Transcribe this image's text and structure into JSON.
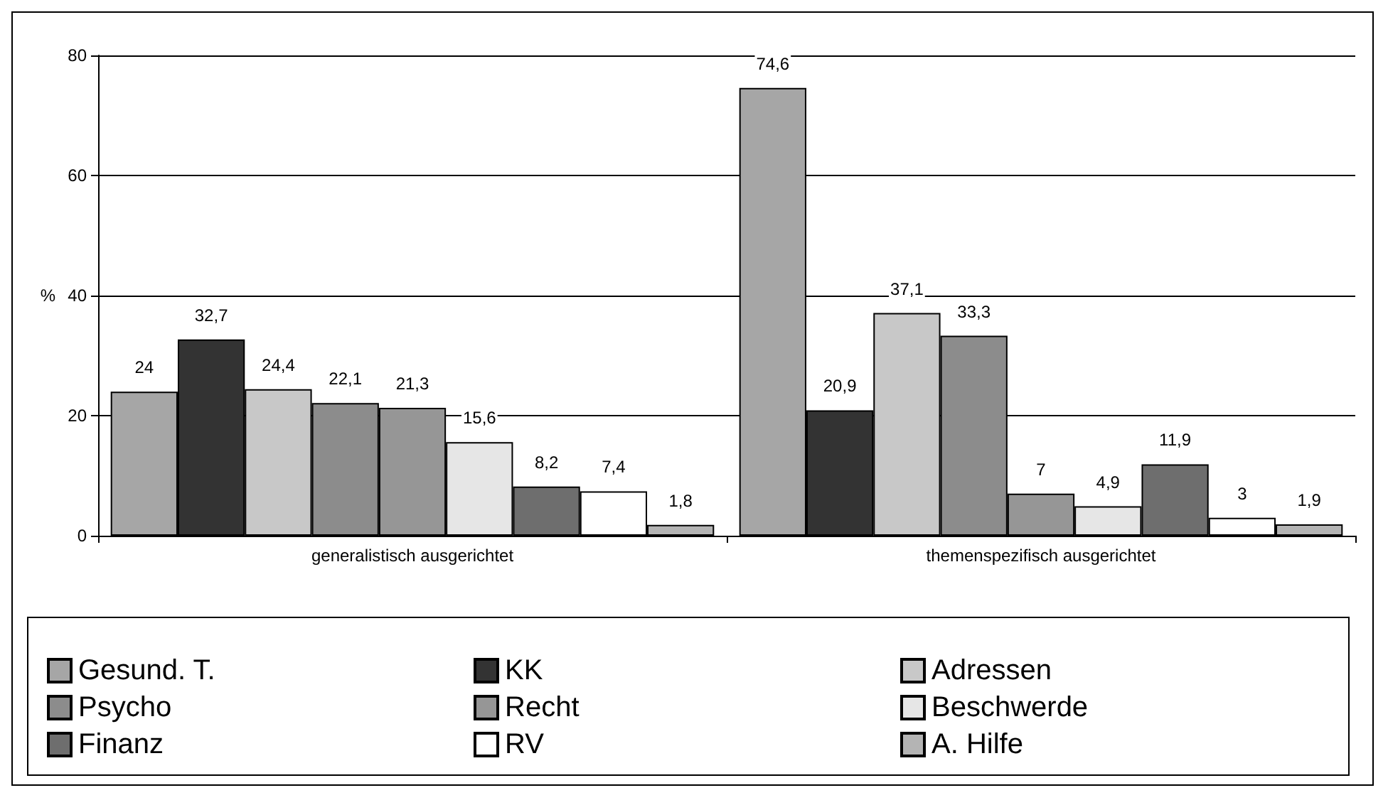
{
  "chart_data": {
    "type": "bar",
    "ylabel": "%",
    "categories": [
      "generalistisch ausgerichtet",
      "themenspezifisch ausgerichtet"
    ],
    "series": [
      {
        "name": "Gesund. T.",
        "color": "#a6a6a6",
        "values": [
          24,
          74.6
        ],
        "value_labels": [
          "24",
          "74,6"
        ]
      },
      {
        "name": "KK",
        "color": "#333333",
        "values": [
          32.7,
          20.9
        ],
        "value_labels": [
          "32,7",
          "20,9"
        ]
      },
      {
        "name": "Adressen",
        "color": "#c8c8c8",
        "values": [
          24.4,
          37.1
        ],
        "value_labels": [
          "24,4",
          "37,1"
        ]
      },
      {
        "name": "Psycho",
        "color": "#8c8c8c",
        "values": [
          22.1,
          33.3
        ],
        "value_labels": [
          "22,1",
          "33,3"
        ]
      },
      {
        "name": "Recht",
        "color": "#969696",
        "values": [
          21.3,
          7
        ],
        "value_labels": [
          "21,3",
          "7"
        ]
      },
      {
        "name": "Beschwerde",
        "color": "#e6e6e6",
        "values": [
          15.6,
          4.9
        ],
        "value_labels": [
          "15,6",
          "4,9"
        ]
      },
      {
        "name": "Finanz",
        "color": "#6e6e6e",
        "values": [
          8.2,
          11.9
        ],
        "value_labels": [
          "8,2",
          "11,9"
        ]
      },
      {
        "name": "RV",
        "color": "#ffffff",
        "values": [
          7.4,
          3
        ],
        "value_labels": [
          "7,4",
          "3"
        ]
      },
      {
        "name": "A. Hilfe",
        "color": "#b4b4b4",
        "values": [
          1.8,
          1.9
        ],
        "value_labels": [
          "1,8",
          "1,9"
        ]
      }
    ],
    "ylim": [
      0,
      80
    ],
    "yticks": [
      0,
      20,
      40,
      60,
      80
    ],
    "grid": "y",
    "legend": "bottom"
  }
}
